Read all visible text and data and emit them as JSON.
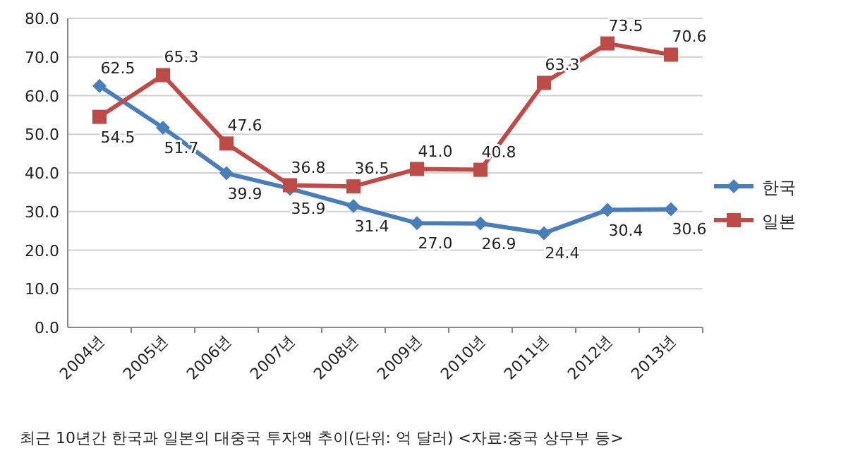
{
  "chart_data": {
    "type": "line",
    "categories": [
      "2004년",
      "2005년",
      "2006년",
      "2007년",
      "2008년",
      "2009년",
      "2010년",
      "2011년",
      "2012년",
      "2013년"
    ],
    "series": [
      {
        "name": "한국",
        "color": "#4a7ebb",
        "marker": "diamond",
        "values": [
          62.5,
          51.7,
          39.9,
          35.9,
          31.4,
          27.0,
          26.9,
          24.4,
          30.4,
          30.6
        ],
        "value_labels": [
          "62.5",
          "51.7",
          "39.9",
          "35.9",
          "31.4",
          "27.0",
          "26.9",
          "24.4",
          "30.4",
          "30.6"
        ]
      },
      {
        "name": "일본",
        "color": "#be4b48",
        "marker": "square",
        "values": [
          54.5,
          65.3,
          47.6,
          36.8,
          36.5,
          41.0,
          40.8,
          63.3,
          73.5,
          70.6
        ],
        "value_labels": [
          "54.5",
          "65.3",
          "47.6",
          "36.8",
          "36.5",
          "41.0",
          "40.8",
          "63.3",
          "73.5",
          "70.6"
        ]
      }
    ],
    "ylim": [
      0,
      80
    ],
    "yticks": [
      {
        "value": 0,
        "label": "0.0"
      },
      {
        "value": 10,
        "label": "10.0"
      },
      {
        "value": 20,
        "label": "20.0"
      },
      {
        "value": 30,
        "label": "30.0"
      },
      {
        "value": 40,
        "label": "40.0"
      },
      {
        "value": 50,
        "label": "50.0"
      },
      {
        "value": 60,
        "label": "60.0"
      },
      {
        "value": 70,
        "label": "70.0"
      },
      {
        "value": 80,
        "label": "80.0"
      }
    ],
    "grid": "y",
    "legend": "right",
    "line_style": "solid",
    "annotations": [
      "최근 10년간 한국과 일본의 대중국 투자액 추이(단위: 억 달러) <자료:중국 상무부 등>"
    ]
  }
}
